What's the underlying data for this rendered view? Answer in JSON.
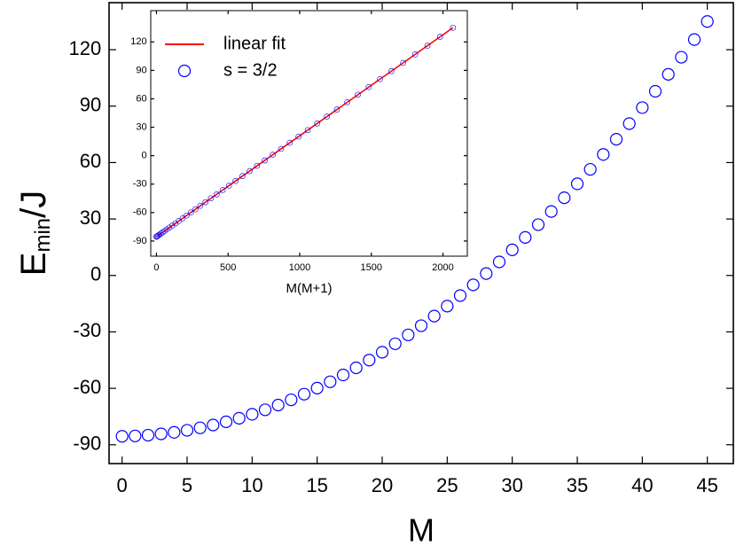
{
  "chart_data": [
    {
      "type": "scatter",
      "xlabel": "M",
      "ylabel": {
        "main": "E",
        "sub": "min",
        "rest": "/J"
      },
      "x": [
        0,
        1,
        2,
        3,
        4,
        5,
        6,
        7,
        8,
        9,
        10,
        11,
        12,
        13,
        14,
        15,
        16,
        17,
        18,
        19,
        20,
        21,
        22,
        23,
        24,
        25,
        26,
        27,
        28,
        29,
        30,
        31,
        32,
        33,
        34,
        35,
        36,
        37,
        38,
        39,
        40,
        41,
        42,
        43,
        44,
        45
      ],
      "series": [
        {
          "name": "s = 3/2",
          "color": "#0000ff",
          "values": [
            -85.5,
            -85.3,
            -84.9,
            -84.2,
            -83.4,
            -82.3,
            -81.0,
            -79.5,
            -77.8,
            -75.9,
            -73.8,
            -71.4,
            -68.9,
            -66.1,
            -63.1,
            -59.9,
            -56.5,
            -52.9,
            -49.1,
            -45.0,
            -40.8,
            -36.3,
            -31.6,
            -26.7,
            -21.6,
            -16.3,
            -10.7,
            -5.0,
            1.0,
            7.2,
            13.6,
            20.2,
            27.0,
            34.0,
            41.3,
            48.7,
            56.4,
            64.3,
            72.4,
            80.7,
            89.2,
            97.9,
            106.9,
            116.0,
            125.4,
            135.0
          ]
        }
      ],
      "xlim": [
        -1,
        47
      ],
      "xticks": [
        0,
        5,
        10,
        15,
        20,
        25,
        30,
        35,
        40,
        45
      ],
      "ylim": [
        -100,
        145
      ],
      "yticks": [
        -90,
        -60,
        -30,
        0,
        30,
        60,
        90,
        120
      ]
    },
    {
      "type": "scatter",
      "xlabel": "M(M+1)",
      "x": [
        0,
        2,
        6,
        12,
        20,
        30,
        42,
        56,
        72,
        90,
        110,
        132,
        156,
        182,
        210,
        240,
        272,
        306,
        342,
        380,
        420,
        462,
        506,
        552,
        600,
        650,
        702,
        756,
        812,
        870,
        930,
        992,
        1056,
        1122,
        1190,
        1260,
        1332,
        1406,
        1482,
        1560,
        1640,
        1722,
        1806,
        1892,
        1980,
        2070
      ],
      "series": [
        {
          "name": "linear fit",
          "type": "line",
          "color": "#ff0000",
          "x": [
            0,
            2070
          ],
          "values": [
            -85.5,
            135.0
          ]
        },
        {
          "name": "s = 3/2",
          "color": "#0000ff",
          "values": [
            -85.5,
            -85.3,
            -84.9,
            -84.2,
            -83.4,
            -82.3,
            -81.0,
            -79.5,
            -77.8,
            -75.9,
            -73.8,
            -71.4,
            -68.9,
            -66.1,
            -63.1,
            -59.9,
            -56.5,
            -52.9,
            -49.1,
            -45.0,
            -40.8,
            -36.3,
            -31.6,
            -26.7,
            -21.6,
            -16.3,
            -10.7,
            -5.0,
            1.0,
            7.2,
            13.6,
            20.2,
            27.0,
            34.0,
            41.3,
            48.7,
            56.4,
            64.3,
            72.4,
            80.7,
            89.2,
            97.9,
            106.9,
            116.0,
            125.4,
            135.0
          ]
        }
      ],
      "xlim": [
        -40,
        2170
      ],
      "xticks": [
        0,
        500,
        1000,
        1500,
        2000
      ],
      "ylim": [
        -106,
        153
      ],
      "yticks": [
        -90,
        -60,
        -30,
        0,
        30,
        60,
        90,
        120
      ],
      "legend": "top-left"
    }
  ]
}
